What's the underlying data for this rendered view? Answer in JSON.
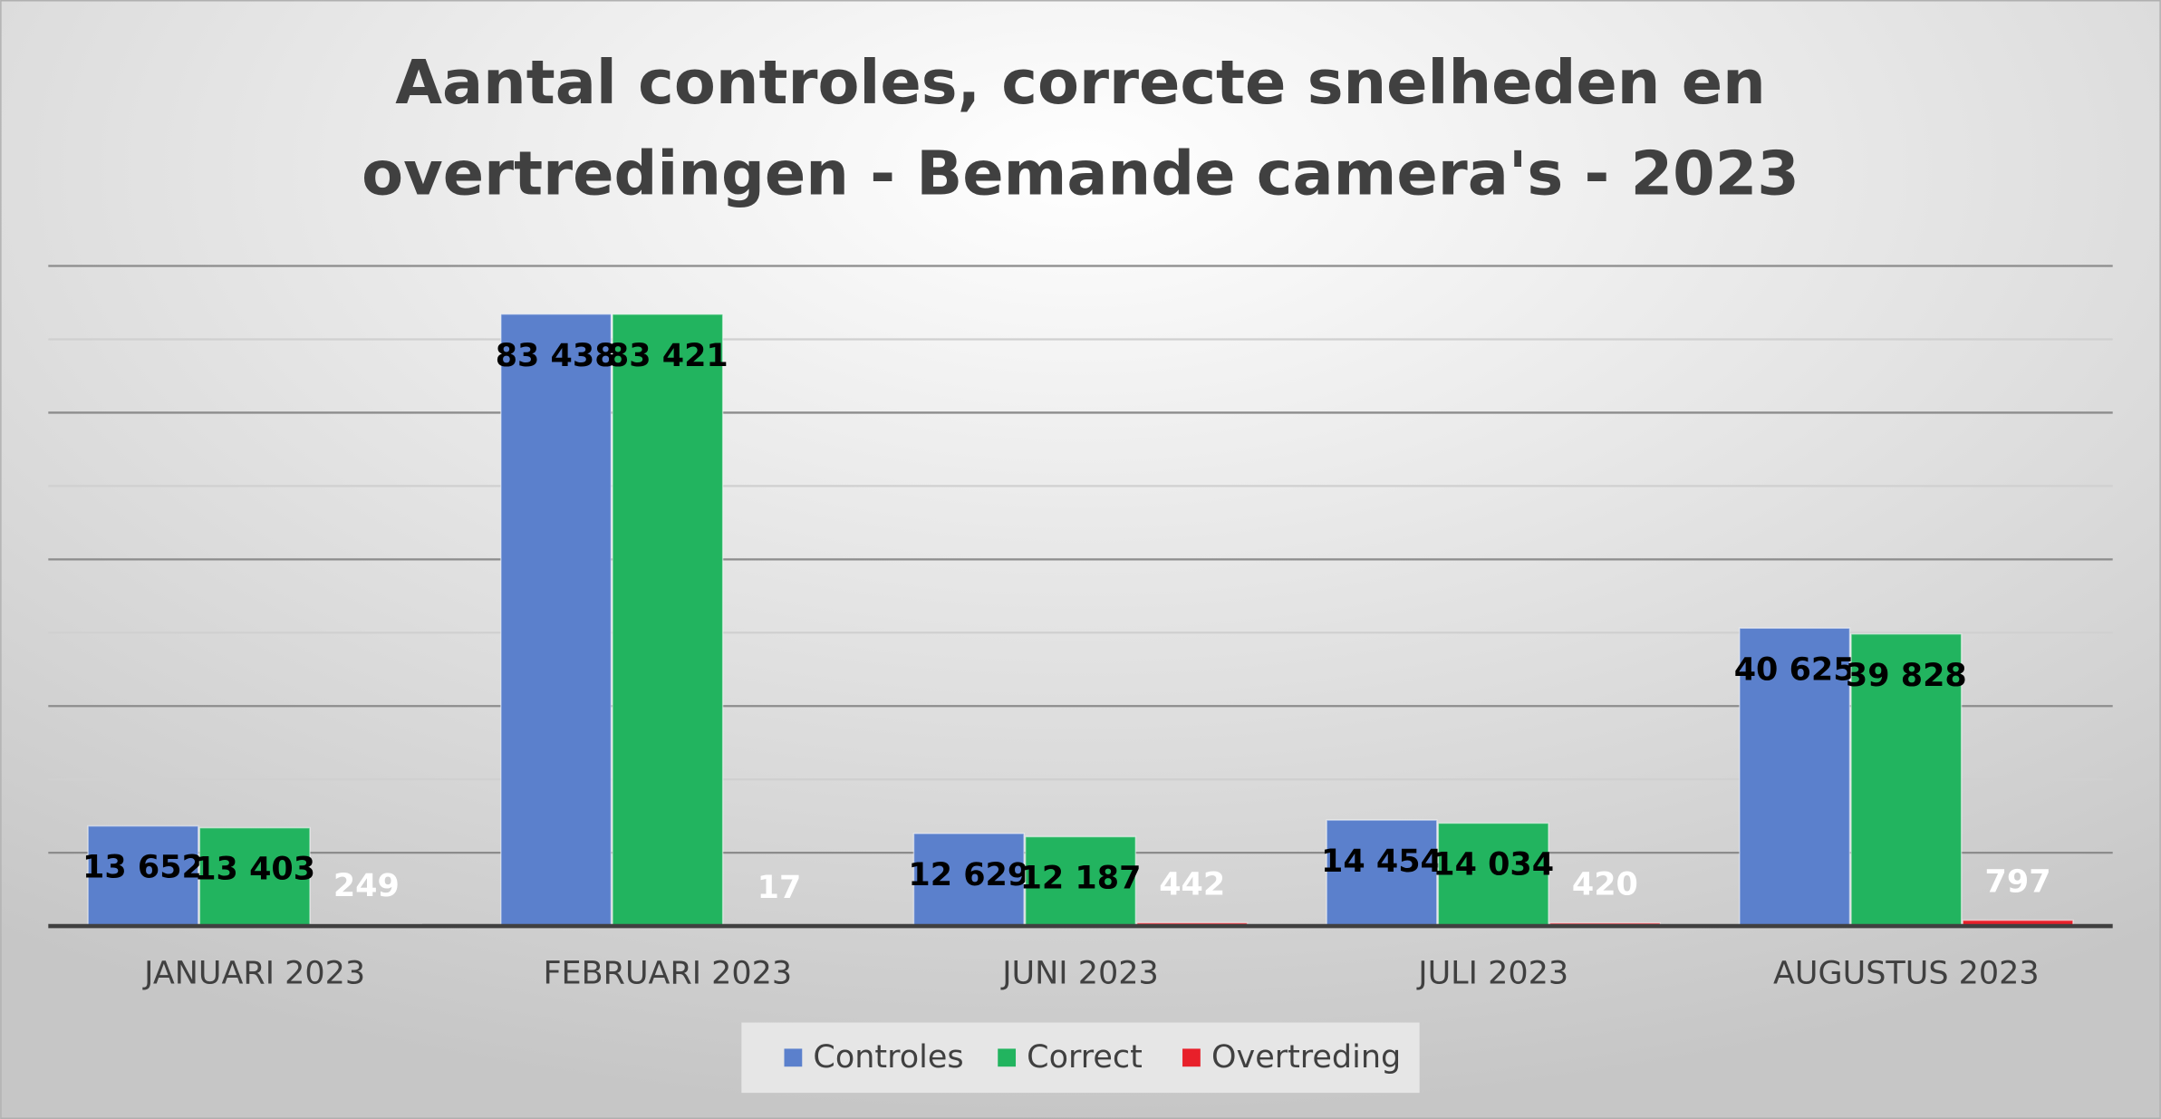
{
  "chart_data": {
    "type": "bar",
    "title": "Aantal controles, correcte snelheden en overtredingen - Bemande camera's - 2023",
    "categories": [
      "JANUARI 2023",
      "FEBRUARI 2023",
      "JUNI 2023",
      "JULI 2023",
      "AUGUSTUS 2023"
    ],
    "series": [
      {
        "name": "Controles",
        "color": "#5b80cc",
        "values": [
          13652,
          83438,
          12629,
          14454,
          40625
        ],
        "value_labels": [
          "13 652",
          "83 438",
          "12 629",
          "14 454",
          "40 625"
        ]
      },
      {
        "name": "Correct",
        "color": "#22b45f",
        "values": [
          13403,
          83421,
          12187,
          14034,
          39828
        ],
        "value_labels": [
          "13 403",
          "83 421",
          "12 187",
          "14 034",
          "39 828"
        ]
      },
      {
        "name": "Overtreding",
        "color": "#e8202a",
        "values": [
          249,
          17,
          442,
          420,
          797
        ]
      }
    ],
    "ylim": [
      0,
      90000
    ],
    "yticks": [
      0,
      10000,
      20000,
      30000,
      40000,
      50000,
      60000,
      70000,
      80000,
      90000
    ],
    "grid": true,
    "legend": "bottom"
  }
}
